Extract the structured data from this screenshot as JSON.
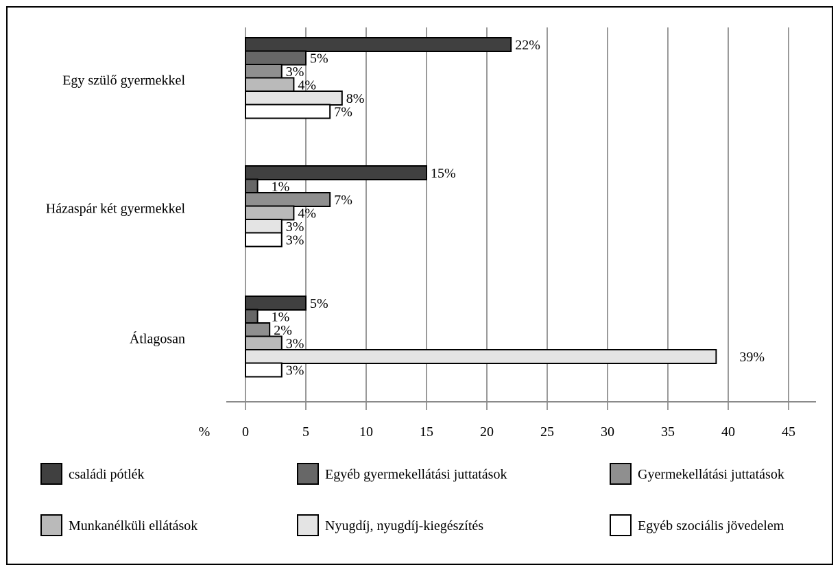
{
  "chart_data": {
    "type": "bar",
    "orientation": "horizontal",
    "title": "",
    "xlabel": "%",
    "ylabel": "",
    "xlim": [
      0,
      45
    ],
    "xticks": [
      "0",
      "5",
      "10",
      "15",
      "20",
      "25",
      "30",
      "35",
      "40",
      "45"
    ],
    "grid": true,
    "legend_position": "bottom",
    "categories": [
      "Egy szülő gyermekkel",
      "Házaspár két gyermekkel",
      "Átlagosan"
    ],
    "series": [
      {
        "name": "családi pótlék",
        "color": "#404040",
        "values": [
          22,
          15,
          5
        ],
        "labels": [
          "22%",
          "15%",
          "5%"
        ]
      },
      {
        "name": "Egyéb gyermekellátási juttatások",
        "color": "#676767",
        "values": [
          5,
          1,
          1
        ],
        "labels": [
          "5%",
          "1%",
          "1%"
        ]
      },
      {
        "name": "Gyermekellátási juttatások",
        "color": "#8f8f8f",
        "values": [
          3,
          7,
          2
        ],
        "labels": [
          "3%",
          "7%",
          "2%"
        ]
      },
      {
        "name": "Munkanélküli ellátások",
        "color": "#bababa",
        "values": [
          4,
          4,
          3
        ],
        "labels": [
          "4%",
          "4%",
          "3%"
        ]
      },
      {
        "name": "Nyugdíj, nyugdíj-kiegészítés",
        "color": "#e4e4e4",
        "values": [
          8,
          3,
          39
        ],
        "labels": [
          "8%",
          "3%",
          "39%"
        ]
      },
      {
        "name": "Egyéb szociális jövedelem",
        "color": "#ffffff",
        "values": [
          7,
          3,
          3
        ],
        "labels": [
          "7%",
          "3%",
          "3%"
        ]
      }
    ]
  }
}
